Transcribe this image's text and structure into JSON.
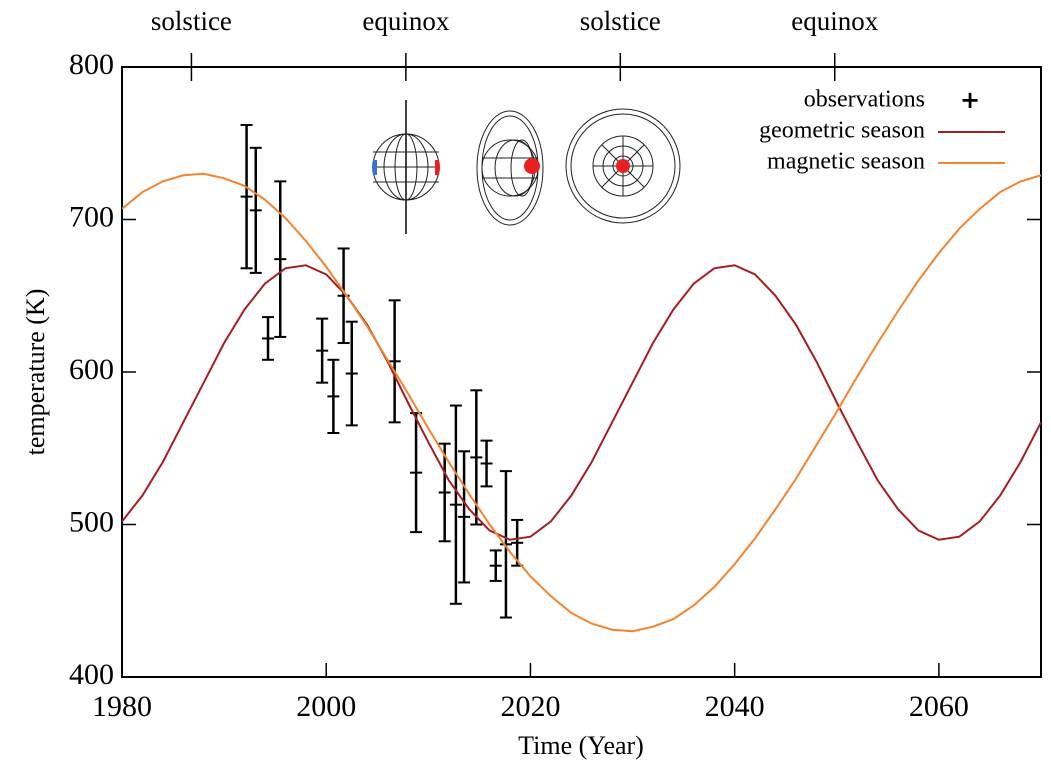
{
  "chart_data": {
    "type": "line",
    "xlabel": "Time (Year)",
    "ylabel": "temperature (K)",
    "xlim": [
      1980,
      2070
    ],
    "ylim": [
      400,
      800
    ],
    "xticks": [
      1980,
      2000,
      2020,
      2040,
      2060
    ],
    "yticks": [
      400,
      500,
      600,
      700,
      800
    ],
    "x2ticks": [
      {
        "value": 1986.8,
        "label": "solstice"
      },
      {
        "value": 2007.8,
        "label": "equinox"
      },
      {
        "value": 2028.8,
        "label": "solstice"
      },
      {
        "value": 2049.8,
        "label": "equinox"
      }
    ],
    "legend": "upper right",
    "series": [
      {
        "name": "observations",
        "kind": "errorbar",
        "marker": "+",
        "color": "#000000",
        "x": [
          1992.2,
          1993.1,
          1994.3,
          1995.5,
          1999.6,
          2000.7,
          2001.7,
          2002.5,
          2006.7,
          2008.8,
          2011.6,
          2012.7,
          2013.5,
          2014.7,
          2015.7,
          2016.6,
          2017.6,
          2018.7
        ],
        "values": [
          715,
          706,
          622,
          674,
          614,
          584,
          650,
          599,
          607,
          534,
          521,
          513,
          505,
          544,
          540,
          473,
          487,
          488
        ],
        "errors": [
          47,
          41,
          14,
          51,
          21,
          24,
          31,
          34,
          40,
          39,
          32,
          65,
          43,
          44,
          15,
          10,
          48,
          15
        ]
      },
      {
        "name": "geometric season",
        "kind": "line",
        "color": "#a51e22",
        "x": [
          1980,
          1982,
          1984,
          1986,
          1988,
          1990,
          1992,
          1994,
          1996,
          1998,
          2000,
          2002,
          2004,
          2006,
          2008,
          2010,
          2012,
          2014,
          2016,
          2018,
          2020,
          2022,
          2024,
          2026,
          2028,
          2030,
          2032,
          2034,
          2036,
          2038,
          2040,
          2042,
          2044,
          2046,
          2048,
          2050,
          2052,
          2054,
          2056,
          2058,
          2060,
          2062,
          2064,
          2066,
          2068,
          2070
        ],
        "values": [
          502,
          519,
          541,
          567,
          593,
          619,
          641,
          658,
          668,
          670,
          664,
          650,
          631,
          607,
          580,
          554,
          529,
          510,
          496,
          490,
          492,
          502,
          519,
          541,
          567,
          593,
          619,
          641,
          658,
          668,
          670,
          664,
          650,
          631,
          607,
          580,
          554,
          529,
          510,
          496,
          490,
          492,
          502,
          519,
          541,
          567
        ]
      },
      {
        "name": "magnetic season",
        "kind": "line",
        "color": "#f3842f",
        "x": [
          1980,
          1982,
          1984,
          1986,
          1988,
          1990,
          1992,
          1994,
          1996,
          1998,
          2000,
          2002,
          2004,
          2006,
          2008,
          2010,
          2012,
          2014,
          2016,
          2018,
          2020,
          2022,
          2024,
          2026,
          2028,
          2030,
          2032,
          2034,
          2036,
          2038,
          2040,
          2042,
          2044,
          2046,
          2048,
          2050,
          2052,
          2054,
          2056,
          2058,
          2060,
          2062,
          2064,
          2066,
          2068,
          2070
        ],
        "values": [
          707,
          718,
          725,
          729,
          730,
          727,
          722,
          713,
          701,
          686,
          669,
          650,
          630,
          608,
          586,
          563,
          541,
          520,
          500,
          482,
          466,
          453,
          442,
          435,
          431,
          430,
          433,
          438,
          447,
          459,
          474,
          491,
          510,
          530,
          552,
          574,
          597,
          619,
          640,
          660,
          678,
          694,
          707,
          718,
          725,
          729
        ]
      }
    ]
  }
}
